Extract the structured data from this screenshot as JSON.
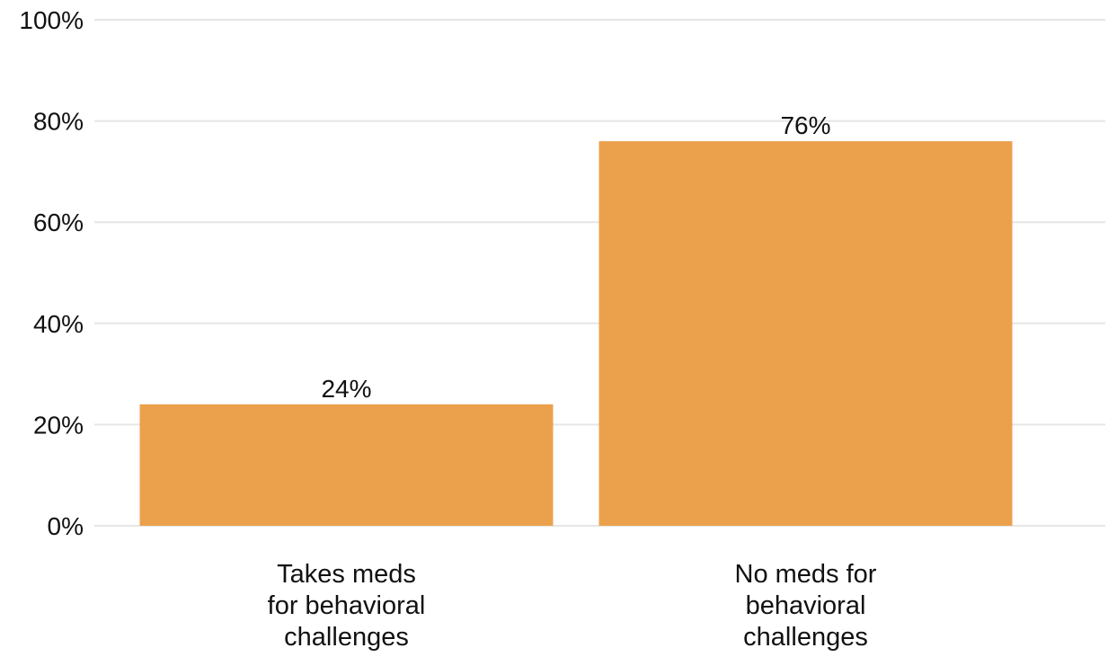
{
  "chart_data": {
    "type": "bar",
    "categories": [
      [
        "Takes meds",
        "for behavioral",
        "challenges"
      ],
      [
        "No meds for",
        "behavioral",
        "challenges"
      ]
    ],
    "values": [
      24,
      76
    ],
    "value_labels": [
      "24%",
      "76%"
    ],
    "ylim": [
      0,
      100
    ],
    "y_ticks": [
      0,
      20,
      40,
      60,
      80,
      100
    ],
    "y_tick_labels": [
      "0%",
      "20%",
      "40%",
      "60%",
      "80%",
      "100%"
    ],
    "grid": true,
    "legend": "none",
    "bar_color": "#eba14c",
    "grid_color": "#e6e6e6",
    "title": "",
    "xlabel": "",
    "ylabel": ""
  }
}
